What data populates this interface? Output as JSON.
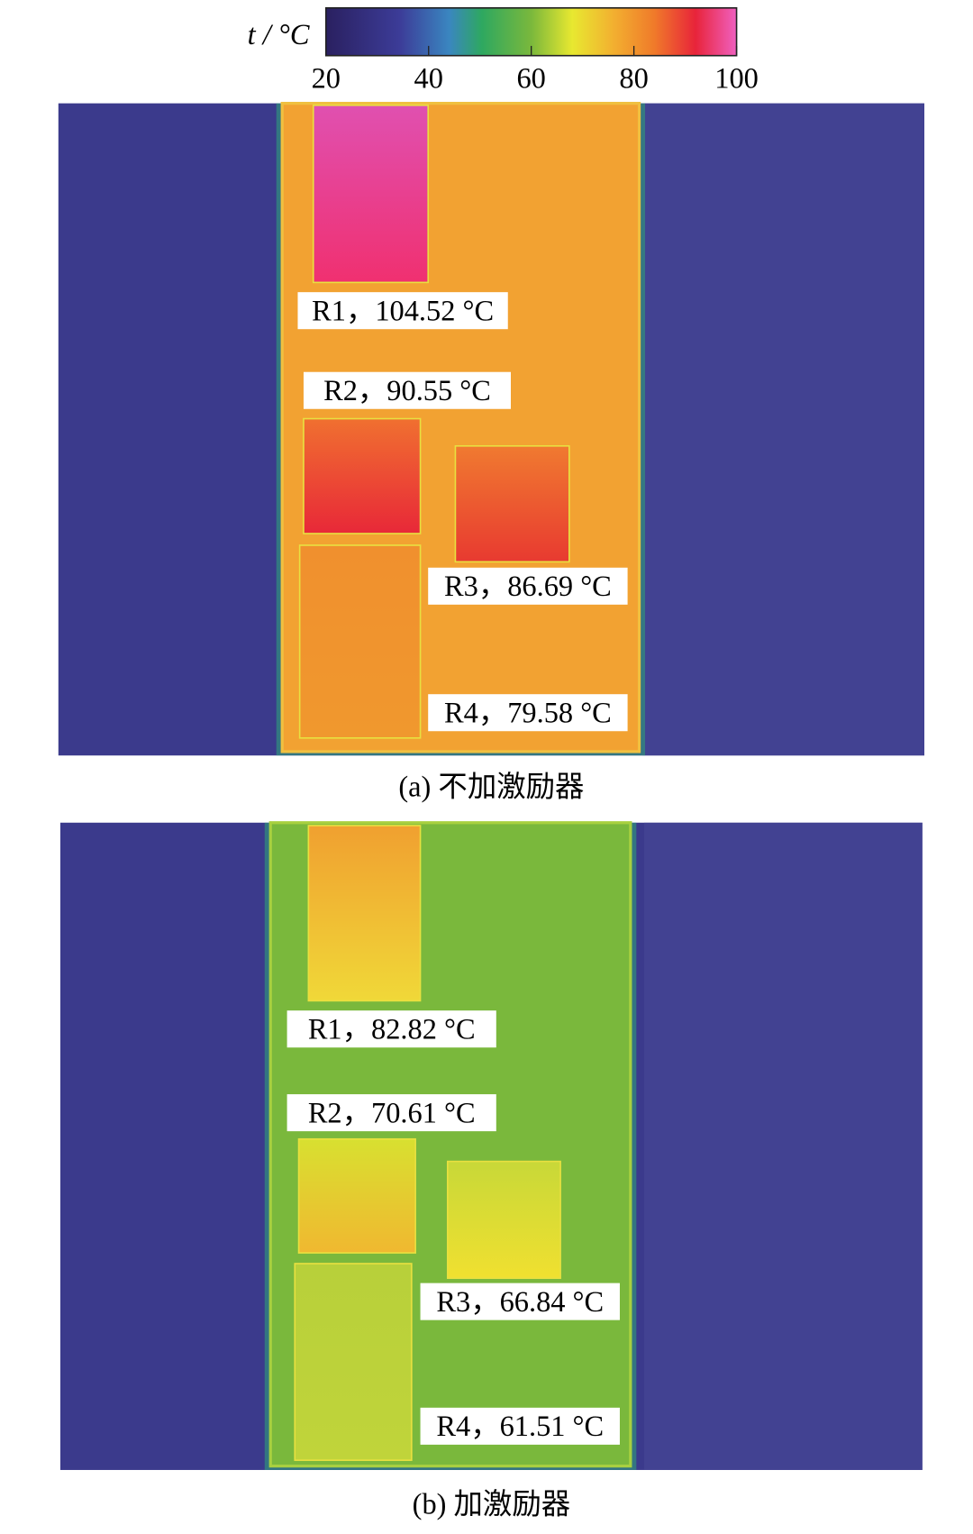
{
  "colorbar": {
    "label": "t / °C",
    "ticks": [
      20,
      40,
      60,
      80,
      100
    ]
  },
  "panels": [
    {
      "caption": "(a) 不加激励器",
      "regions": [
        "R1，104.52 °C",
        "R2，90.55 °C",
        "R3，86.69 °C",
        "R4，79.58 °C"
      ]
    },
    {
      "caption": "(b) 加激励器",
      "regions": [
        "R1，82.82 °C",
        "R2，70.61 °C",
        "R3，66.84 °C",
        "R4，61.51 °C"
      ]
    }
  ]
}
